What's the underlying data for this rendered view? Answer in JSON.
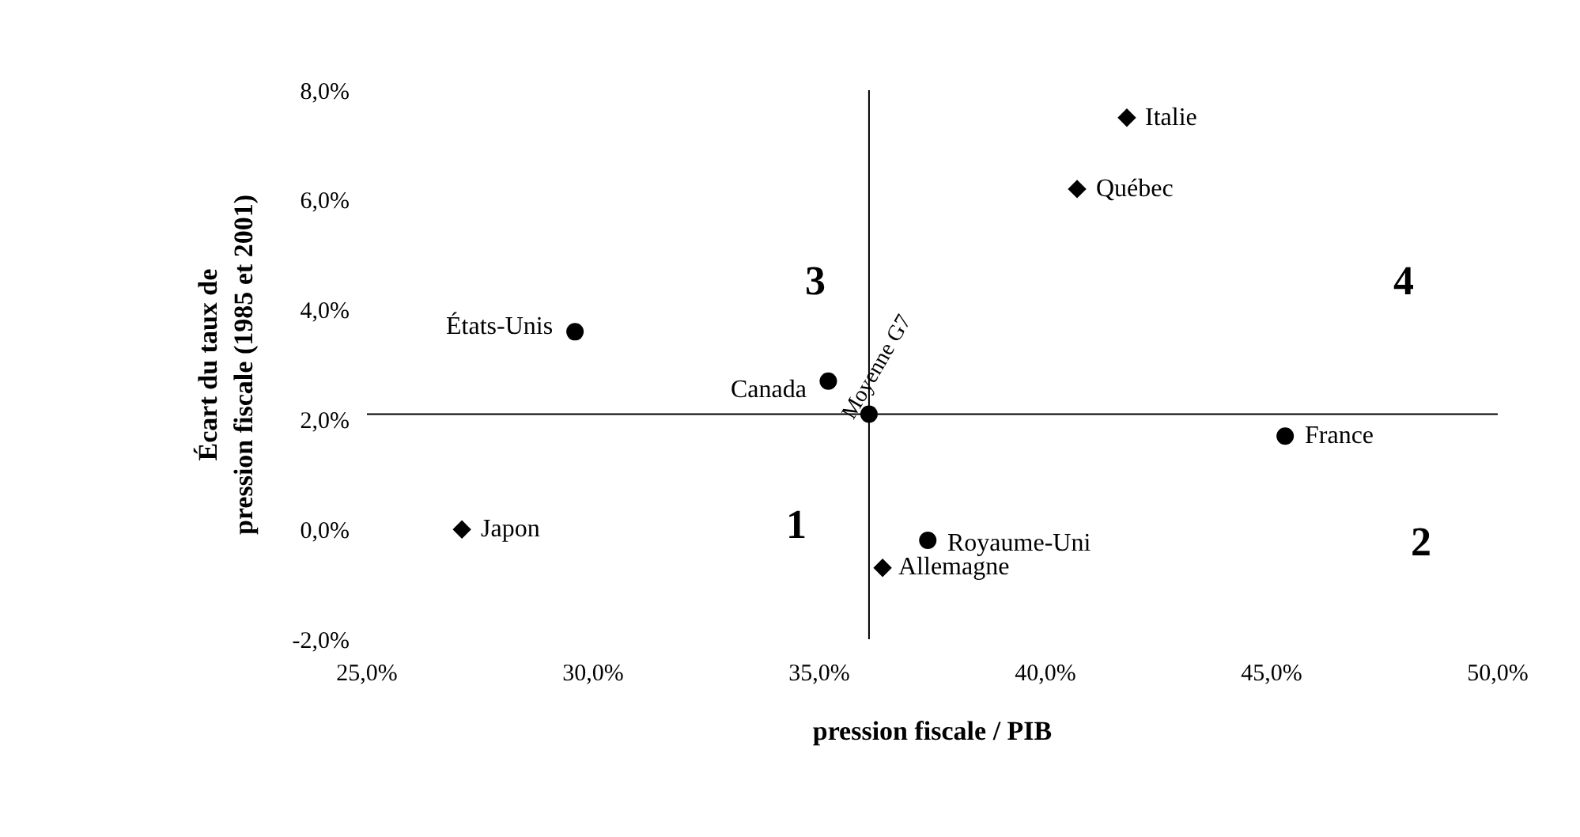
{
  "chart_data": {
    "type": "scatter",
    "xlabel": "pression fiscale / PIB",
    "ylabel": "Écart du taux de pression fiscale (1985 et 2001)",
    "series": [
      {
        "color": "#000000",
        "marker": "circle",
        "x": [
          29.6,
          35.2,
          36.1,
          45.3,
          37.4
        ],
        "values": [
          3.6,
          2.7,
          2.1,
          1.7,
          -0.2
        ]
      },
      {
        "color": "#000000",
        "marker": "diamond",
        "x": [
          41.8,
          40.7,
          27.1,
          36.4
        ],
        "values": [
          7.5,
          6.2,
          0.0,
          -0.7
        ]
      }
    ],
    "annotations": [
      {
        "text": "États-Unis",
        "x": 29.6,
        "y": 3.6
      },
      {
        "text": "Canada",
        "x": 35.2,
        "y": 2.7
      },
      {
        "text": "Moyenne G7",
        "x": 36.1,
        "y": 2.1
      },
      {
        "text": "France",
        "x": 45.3,
        "y": 1.7
      },
      {
        "text": "Royaume-Uni",
        "x": 37.4,
        "y": -0.2
      },
      {
        "text": "Italie",
        "x": 41.8,
        "y": 7.5
      },
      {
        "text": "Québec",
        "x": 40.7,
        "y": 6.2
      },
      {
        "text": "Japon",
        "x": 27.1,
        "y": 0.0
      },
      {
        "text": "Allemagne",
        "x": 36.4,
        "y": -0.7
      },
      "3",
      "4",
      "1",
      "2"
    ],
    "ref_lines": [
      {
        "axis": "x",
        "value": 36.1,
        "color": "#000000"
      },
      {
        "axis": "y",
        "value": 2.1,
        "color": "#000000"
      }
    ],
    "xlim": [
      25,
      50
    ],
    "xticks": [
      {
        "value": 25,
        "label": "25,0%"
      },
      {
        "value": 30,
        "label": "30,0%"
      },
      {
        "value": 35,
        "label": "35,0%"
      },
      {
        "value": 40,
        "label": "40,0%"
      },
      {
        "value": 45,
        "label": "45,0%"
      },
      {
        "value": 50,
        "label": "50,0%"
      }
    ],
    "ylim": [
      -2,
      8
    ],
    "yticks": [
      {
        "value": -2,
        "label": "-2,0%"
      },
      {
        "value": 0,
        "label": "0,0%"
      },
      {
        "value": 2,
        "label": "2,0%"
      },
      {
        "value": 4,
        "label": "4,0%"
      },
      {
        "value": 6,
        "label": "6,0%"
      },
      {
        "value": 8,
        "label": "8,0%"
      }
    ]
  }
}
